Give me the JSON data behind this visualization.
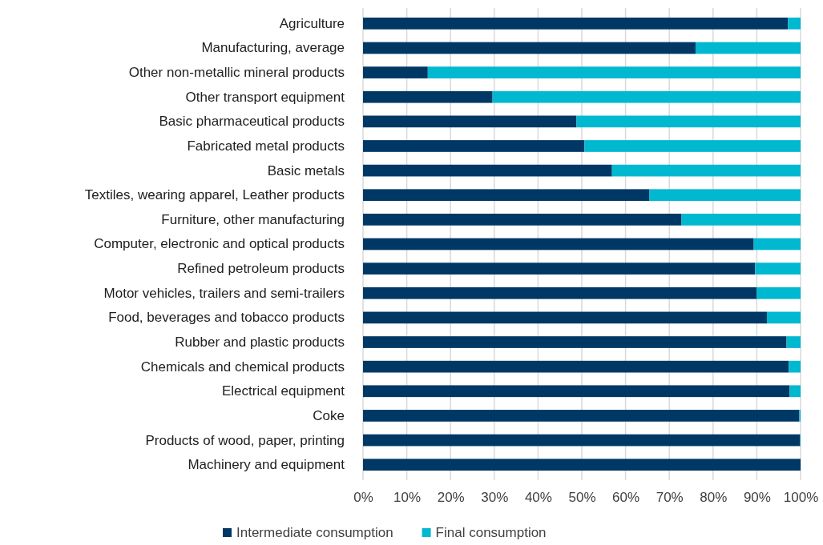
{
  "chart_data": {
    "type": "bar",
    "orientation": "horizontal",
    "stacked": true,
    "categories": [
      "Agriculture",
      "Manufacturing, average",
      "Other non-metallic mineral products",
      "Other transport equipment",
      "Basic pharmaceutical products",
      "Fabricated metal products",
      "Basic metals",
      "Textiles, wearing apparel, Leather products",
      "Furniture, other manufacturing",
      "Computer, electronic and optical products",
      "Refined petroleum products",
      "Motor vehicles, trailers and semi-trailers",
      "Food, beverages and tobacco products",
      "Rubber and plastic products",
      "Chemicals and chemical products",
      "Electrical equipment",
      "Coke",
      "Products of wood, paper, printing",
      "Machinery and equipment"
    ],
    "series": [
      {
        "name": "Intermediate consumption",
        "color": "#003865",
        "values": [
          97.1,
          76.0,
          14.8,
          29.6,
          48.8,
          50.6,
          56.9,
          65.4,
          72.8,
          89.3,
          89.6,
          90.0,
          92.3,
          96.8,
          97.3,
          97.5,
          99.7,
          99.9,
          100
        ]
      },
      {
        "name": "Final consumption",
        "color": "#00b8d0",
        "values": [
          2.9,
          24.0,
          85.2,
          70.4,
          51.2,
          49.4,
          43.1,
          34.6,
          27.2,
          10.7,
          10.4,
          10.0,
          7.7,
          3.2,
          2.7,
          2.5,
          0.3,
          0.1,
          0
        ]
      }
    ],
    "xlim": [
      0,
      100
    ],
    "xticks": [
      {
        "value": 0,
        "label": "0%"
      },
      {
        "value": 10,
        "label": "10%"
      },
      {
        "value": 20,
        "label": "20%"
      },
      {
        "value": 30,
        "label": "30%"
      },
      {
        "value": 40,
        "label": "40%"
      },
      {
        "value": 50,
        "label": "50%"
      },
      {
        "value": 60,
        "label": "60%"
      },
      {
        "value": 70,
        "label": "70%"
      },
      {
        "value": 80,
        "label": "80%"
      },
      {
        "value": 90,
        "label": "90%"
      },
      {
        "value": 100,
        "label": "100%"
      }
    ],
    "grid": "x",
    "legend": "bottom"
  }
}
